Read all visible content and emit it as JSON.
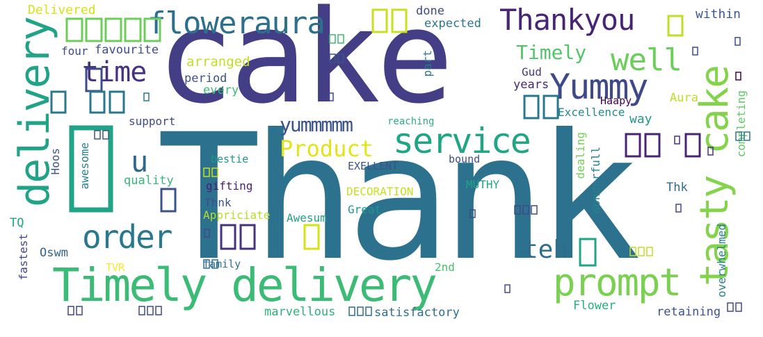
{
  "words": [
    {
      "text": "Thank",
      "color": "#2c718e"
    },
    {
      "text": "cake",
      "color": "#433e85"
    },
    {
      "text": "Timely delivery",
      "color": "#3bbb75"
    },
    {
      "text": "tasty cake",
      "color": "#84d44b"
    },
    {
      "text": "delivery",
      "color": "#20a386"
    },
    {
      "text": "floweraura",
      "color": "#2d708e"
    },
    {
      "text": "Thankyou",
      "color": "#482475"
    },
    {
      "text": "service",
      "color": "#21a585"
    },
    {
      "text": "prompt",
      "color": "#7ad151"
    },
    {
      "text": "Yummy",
      "color": "#3e4989"
    },
    {
      "text": "order",
      "color": "#2a788e"
    },
    {
      "text": "time",
      "color": "#46327e"
    },
    {
      "text": "well",
      "color": "#6ccd5a"
    },
    {
      "text": "Timely",
      "color": "#52c569"
    },
    {
      "text": "Product",
      "color": "#e2e418"
    },
    {
      "text": "yummmmm",
      "color": "#3b528b"
    },
    {
      "text": "teh",
      "color": "#2f6c8e"
    },
    {
      "text": "u",
      "color": "#31688e"
    },
    {
      "text": "Delivered",
      "color": "#d8e219"
    },
    {
      "text": "done",
      "color": "#3e4a89"
    },
    {
      "text": "expected",
      "color": "#2a768e"
    },
    {
      "text": "within",
      "color": "#38598c"
    },
    {
      "text": "four",
      "color": "#3e4c8a"
    },
    {
      "text": "favourite",
      "color": "#3d4e8a"
    },
    {
      "text": "arranged",
      "color": "#c2df23"
    },
    {
      "text": "period",
      "color": "#3b528b"
    },
    {
      "text": "every",
      "color": "#3dbc74"
    },
    {
      "text": "Gud",
      "color": "#453781"
    },
    {
      "text": "years",
      "color": "#482878"
    },
    {
      "text": "Aura",
      "color": "#bddf26"
    },
    {
      "text": "Excellence",
      "color": "#2a788e"
    },
    {
      "text": "Haapy",
      "color": "#23898e"
    },
    {
      "text": "way",
      "color": "#440154"
    },
    {
      "text": "support",
      "color": "#1f998a"
    },
    {
      "text": "reaching",
      "color": "#5ec962"
    },
    {
      "text": "bestie",
      "color": "#3e4a89"
    },
    {
      "text": "EXELLENT",
      "color": "#2ab07f"
    },
    {
      "text": "bound",
      "color": "#3b528b"
    },
    {
      "text": "quality",
      "color": "#26828e"
    },
    {
      "text": "gifting",
      "color": "#75d054"
    },
    {
      "text": "DECORATION",
      "color": "#26828e"
    },
    {
      "text": "MUTHY",
      "color": "#1f968b"
    },
    {
      "text": "Thk",
      "color": "#3b528b"
    },
    {
      "text": "Thnk",
      "color": "#3e4c8a"
    },
    {
      "text": "Great",
      "color": "#35b779"
    },
    {
      "text": "Awesum",
      "color": "#481f70"
    },
    {
      "text": "Appriciate",
      "color": "#c8e020"
    },
    {
      "text": "TQ",
      "color": "#21a685"
    },
    {
      "text": "Oswm",
      "color": "#2f6c8e"
    },
    {
      "text": "family",
      "color": "#3b528b"
    },
    {
      "text": "TVR",
      "color": "#1f988b"
    },
    {
      "text": "2nd",
      "color": "#1f9e89"
    },
    {
      "text": "Flower",
      "color": "#b5de2b"
    },
    {
      "text": "marvellous",
      "color": "#20a386"
    },
    {
      "text": "satisfactory",
      "color": "#33638d"
    },
    {
      "text": "retaining",
      "color": "#26828e"
    },
    {
      "text": "part",
      "color": "#2e6f8e"
    },
    {
      "text": "completing",
      "color": "#404588"
    },
    {
      "text": "Hoos",
      "color": "#fde725"
    },
    {
      "text": "awesome",
      "color": "#4ac16d"
    },
    {
      "text": "dealing",
      "color": "#26ad81"
    },
    {
      "text": "Wonderfull",
      "color": "#2db27d"
    },
    {
      "text": "overwhelmed",
      "color": "#2e6e8e"
    },
    {
      "text": "fastest",
      "color": "#3b528b"
    }
  ]
}
